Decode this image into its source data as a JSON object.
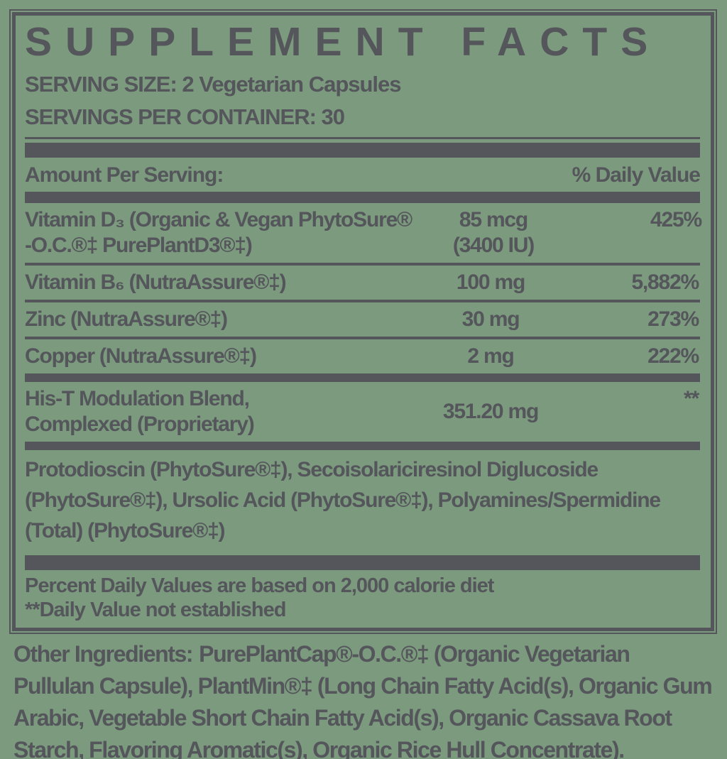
{
  "colors": {
    "background": "#7C9A7E",
    "ink": "#54565B"
  },
  "panel": {
    "title": "SUPPLEMENT FACTS",
    "serving_size": "SERVING SIZE: 2 Vegetarian Capsules",
    "servings_per_container": "SERVINGS PER CONTAINER: 30",
    "header": {
      "amount_per_serving": "Amount Per Serving:",
      "daily_value": "% Daily Value"
    },
    "rows": [
      {
        "name_lines": [
          "Vitamin D₃ (Organic & Vegan PhytoSure®",
          "-O.C.®‡ PurePlantD3®‡)"
        ],
        "amount_lines": [
          "85 mcg",
          "(3400 IU)"
        ],
        "dv": "425%"
      },
      {
        "name_lines": [
          "Vitamin B₆ (NutraAssure®‡)"
        ],
        "amount_lines": [
          "100 mg"
        ],
        "dv": "5,882%"
      },
      {
        "name_lines": [
          "Zinc (NutraAssure®‡)"
        ],
        "amount_lines": [
          "30 mg"
        ],
        "dv": "273%"
      },
      {
        "name_lines": [
          "Copper (NutraAssure®‡)"
        ],
        "amount_lines": [
          "2 mg"
        ],
        "dv": "222%"
      },
      {
        "name_lines": [
          "His-T Modulation Blend,",
          "Complexed (Proprietary)"
        ],
        "amount_lines": [
          "351.20 mg"
        ],
        "dv": "**"
      }
    ],
    "blend_subingredients": "Protodioscin (PhytoSure®‡), Secoisolariciresinol Diglucoside (PhytoSure®‡), Ursolic Acid (PhytoSure®‡), Polyamines/Spermidine (Total) (PhytoSure®‡)",
    "footnotes": [
      "Percent Daily Values are based on 2,000 calorie diet",
      "**Daily Value not established"
    ]
  },
  "other_ingredients": {
    "lead": "Other Ingredients:",
    "text": "PurePlantCap®-O.C.®‡ (Organic Vegetarian Pullulan Capsule), PlantMin®‡ (Long Chain Fatty Acid(s), Organic Gum Arabic, Vegetable Short Chain Fatty Acid(s), Organic Cassava Root Starch, Flavoring Aromatic(s), Organic Rice Hull Concentrate)."
  }
}
